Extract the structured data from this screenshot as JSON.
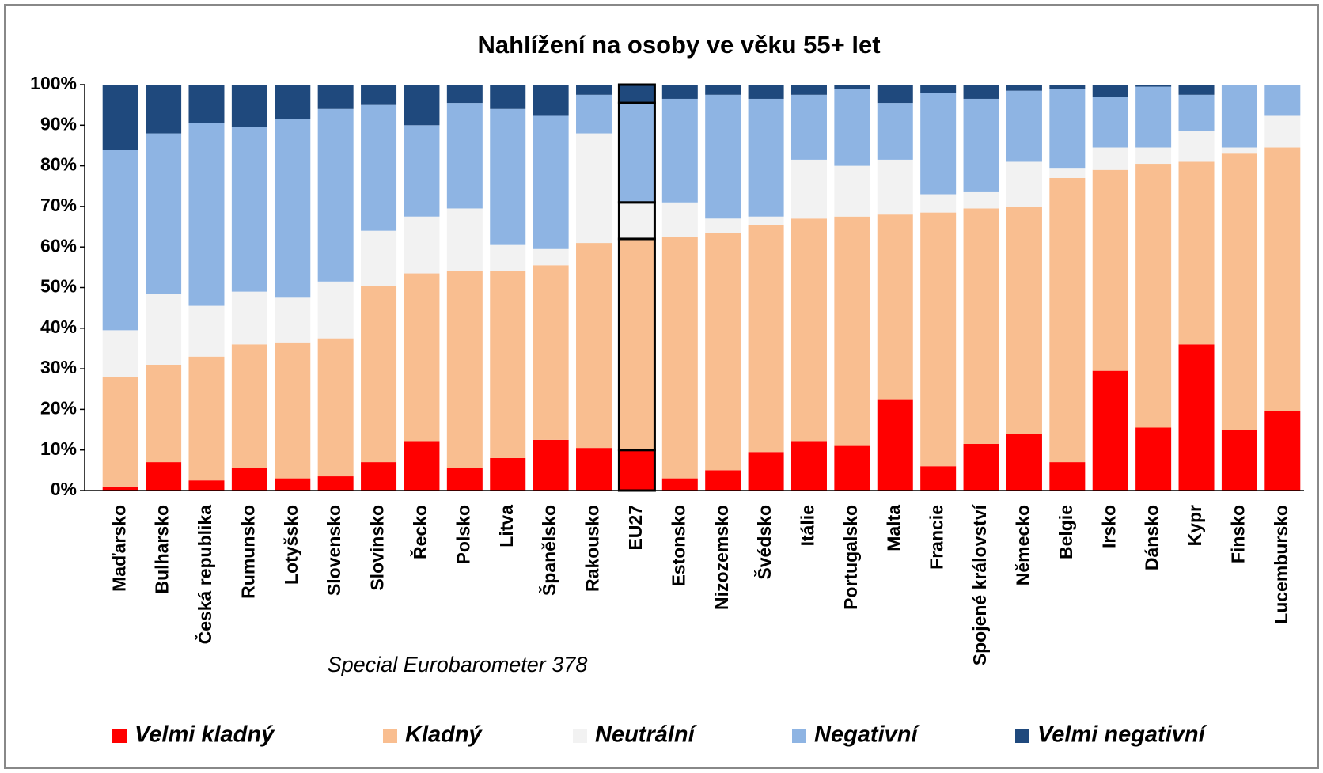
{
  "chart_data": {
    "type": "stacked-bar",
    "title": "Nahlížení na osoby ve věku 55+ let",
    "annotation": "Special Eurobarometer 378",
    "categories": [
      "Maďarsko",
      "Bulharsko",
      "Česká republika",
      "Rumunsko",
      "Lotyšsko",
      "Slovensko",
      "Slovinsko",
      "Řecko",
      "Polsko",
      "Litva",
      "Španělsko",
      "Rakousko",
      "EU27",
      "Estonsko",
      "Nizozemsko",
      "Švédsko",
      "Itálie",
      "Portugalsko",
      "Malta",
      "Francie",
      "Spojené  království",
      "Německo",
      "Belgie",
      "Irsko",
      "Dánsko",
      "Kypr",
      "Finsko",
      "Lucembursko"
    ],
    "highlight": "EU27",
    "series": [
      {
        "name": "Velmi kladný",
        "color": "#ff0000",
        "values": [
          1,
          7,
          2.5,
          5.5,
          3,
          3.5,
          7,
          12,
          5.5,
          8,
          12.5,
          10.5,
          10,
          3,
          5,
          9.5,
          12,
          11,
          22.5,
          6,
          11.5,
          14,
          7,
          29.5,
          15.5,
          36,
          15,
          19.5
        ]
      },
      {
        "name": "Kladný",
        "color": "#f9be90",
        "values": [
          27,
          24,
          30.5,
          30.5,
          33.5,
          34,
          43.5,
          41.5,
          48.5,
          46,
          43,
          50.5,
          52,
          59.5,
          58.5,
          56,
          55,
          56.5,
          45.5,
          62.5,
          58,
          56,
          70,
          49.5,
          65,
          45,
          68,
          65
        ]
      },
      {
        "name": "Neutrální",
        "color": "#f2f2f2",
        "values": [
          11.5,
          17.5,
          12.5,
          13,
          11,
          14,
          13.5,
          14,
          15.5,
          6.5,
          4,
          27,
          9,
          8.5,
          3.5,
          2,
          14.5,
          12.5,
          13.5,
          4.5,
          4,
          11,
          2.5,
          5.5,
          4,
          7.5,
          1.5,
          8
        ]
      },
      {
        "name": "Negativní",
        "color": "#8eb4e3",
        "values": [
          44.5,
          39.5,
          45,
          40.5,
          44,
          42.5,
          31,
          22.5,
          26,
          33.5,
          33,
          9.5,
          24.5,
          25.5,
          30.5,
          29,
          16,
          19,
          14,
          25,
          23,
          17.5,
          19.5,
          12.5,
          15,
          9,
          15.5,
          7.5
        ]
      },
      {
        "name": "Velmi negativní",
        "color": "#1f497d",
        "values": [
          16,
          12,
          9.5,
          10.5,
          8.5,
          6,
          5,
          10,
          4.5,
          6,
          7.5,
          2.5,
          4.5,
          3.5,
          2.5,
          3.5,
          2.5,
          1,
          4.5,
          2,
          3.5,
          1.5,
          1,
          3,
          0.5,
          2.5,
          0,
          0
        ]
      }
    ],
    "ylim": [
      0,
      100
    ],
    "yticks": [
      {
        "value": 0,
        "label": "0%"
      },
      {
        "value": 10,
        "label": "10%"
      },
      {
        "value": 20,
        "label": "20%"
      },
      {
        "value": 30,
        "label": "30%"
      },
      {
        "value": 40,
        "label": "40%"
      },
      {
        "value": 50,
        "label": "50%"
      },
      {
        "value": 60,
        "label": "60%"
      },
      {
        "value": 70,
        "label": "70%"
      },
      {
        "value": 80,
        "label": "80%"
      },
      {
        "value": 90,
        "label": "90%"
      },
      {
        "value": 100,
        "label": "100%"
      }
    ],
    "legend": "bottom"
  }
}
